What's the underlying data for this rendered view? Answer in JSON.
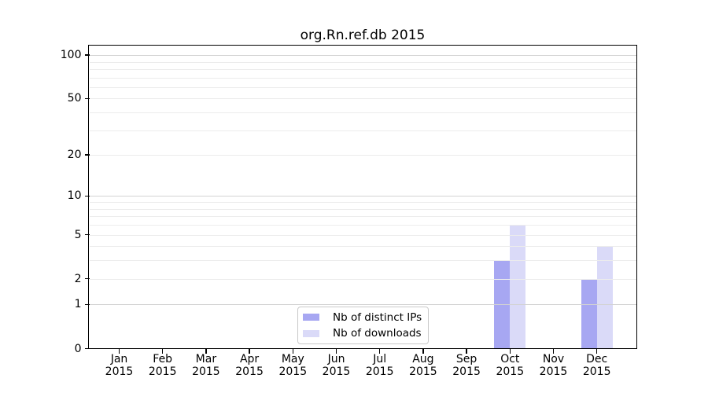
{
  "chart_data": {
    "type": "bar",
    "title": "org.Rn.ref.db 2015",
    "categories": [
      "Jan",
      "Feb",
      "Mar",
      "Apr",
      "May",
      "Jun",
      "Jul",
      "Aug",
      "Sep",
      "Oct",
      "Nov",
      "Dec"
    ],
    "category_year": "2015",
    "series": [
      {
        "name": "Nb of distinct IPs",
        "color": "#a7a7f2",
        "values": [
          0,
          0,
          0,
          0,
          0,
          0,
          0,
          0,
          0,
          3,
          0,
          2
        ]
      },
      {
        "name": "Nb of downloads",
        "color": "#dadaf8",
        "values": [
          0,
          0,
          0,
          0,
          0,
          0,
          0,
          0,
          0,
          6,
          0,
          4
        ]
      }
    ],
    "yticks": [
      0,
      1,
      2,
      5,
      10,
      20,
      50,
      100
    ],
    "ylim": [
      0,
      115
    ],
    "yscale": "log1p",
    "grid": {
      "show": true,
      "orientation": "horizontal",
      "major_values": [
        1,
        10,
        100
      ],
      "minor_values": [
        2,
        3,
        4,
        5,
        6,
        7,
        8,
        9,
        20,
        30,
        40,
        50,
        60,
        70,
        80,
        90
      ],
      "major_color": "#d2d2d2",
      "minor_color": "#ececec"
    },
    "legend_position": "lower-center-inside",
    "axis_color": "#000000",
    "background_color": "#ffffff"
  }
}
